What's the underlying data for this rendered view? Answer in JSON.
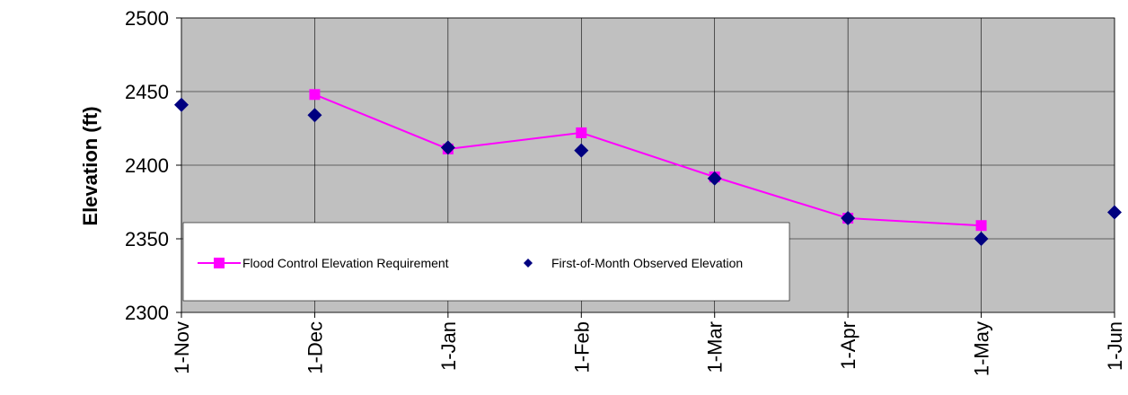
{
  "chart_data": {
    "type": "line",
    "ylabel": "Elevation (ft)",
    "xlabel": "",
    "title": "",
    "categories": [
      "1-Nov",
      "1-Dec",
      "1-Jan",
      "1-Feb",
      "1-Mar",
      "1-Apr",
      "1-May",
      "1-Jun"
    ],
    "ylim": [
      2300,
      2500
    ],
    "yticks": [
      "2300",
      "2350",
      "2400",
      "2450",
      "2500"
    ],
    "grid": true,
    "plot_background": "#c0c0c0",
    "legend_position": "bottom-left inside plot",
    "series": [
      {
        "name": "Flood Control Elevation Requirement",
        "color": "#ff00ff",
        "marker": "square",
        "line": true,
        "values": [
          null,
          2448,
          2411,
          2422,
          2392,
          2364,
          2359,
          null
        ]
      },
      {
        "name": "First-of-Month Observed Elevation",
        "color": "#000080",
        "marker": "diamond",
        "line": false,
        "values": [
          2441,
          2434,
          2412,
          2410,
          2391,
          2364,
          2350,
          2368
        ]
      }
    ]
  }
}
